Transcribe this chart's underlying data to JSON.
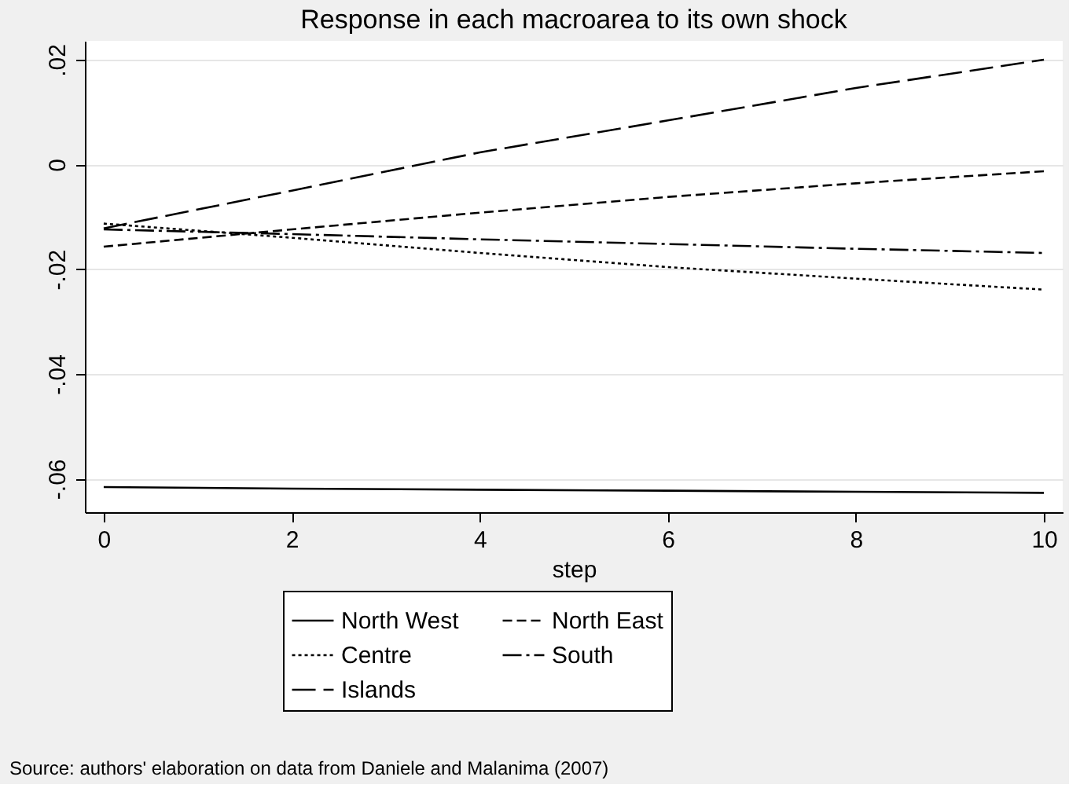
{
  "chart_data": {
    "type": "line",
    "title": "Response in each macroarea to its own shock",
    "xlabel": "step",
    "x": [
      0,
      2,
      4,
      6,
      8,
      10
    ],
    "series": [
      {
        "name": "North West",
        "color": "#000000",
        "line_style": "solid",
        "values": [
          -0.0616,
          -0.0619,
          -0.0621,
          -0.0623,
          -0.0625,
          -0.0627
        ]
      },
      {
        "name": "North East",
        "color": "#000000",
        "line_style": "dashed",
        "values": [
          -0.0157,
          -0.0124,
          -0.0092,
          -0.0062,
          -0.0036,
          -0.0013
        ]
      },
      {
        "name": "Centre",
        "color": "#000000",
        "line_style": "dotted",
        "values": [
          -0.0113,
          -0.014,
          -0.0169,
          -0.0196,
          -0.0218,
          -0.0239
        ]
      },
      {
        "name": "South",
        "color": "#000000",
        "line_style": "dashdot",
        "values": [
          -0.0124,
          -0.0133,
          -0.0143,
          -0.0152,
          -0.0161,
          -0.0169
        ]
      },
      {
        "name": "Islands",
        "color": "#000000",
        "line_style": "longdash",
        "values": [
          -0.0122,
          -0.005,
          0.0023,
          0.0084,
          0.0146,
          0.02
        ]
      }
    ],
    "xlim": [
      -0.2,
      10.2
    ],
    "ylim": [
      -0.0664,
      0.0236
    ],
    "xticks": [
      0,
      2,
      4,
      6,
      8,
      10
    ],
    "yticks": [
      {
        "value": 0.02,
        "label": ".02"
      },
      0,
      {
        "value": -0.02,
        "label": "-.02"
      },
      {
        "value": -0.04,
        "label": "-.04"
      },
      {
        "value": -0.06,
        "label": "-.06"
      }
    ],
    "grid": "y",
    "legend": "bottom",
    "annotations": [
      "Source: authors' elaboration on data from Daniele and Malanima (2007)"
    ]
  }
}
